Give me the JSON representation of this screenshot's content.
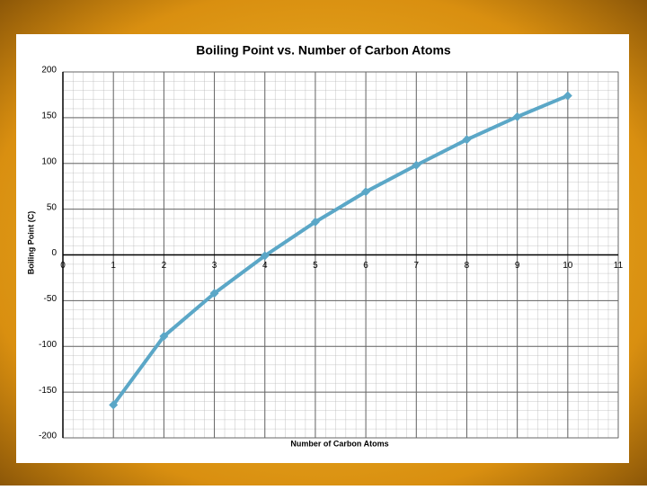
{
  "chart_data": {
    "type": "line",
    "title": "Boiling Point vs. Number of Carbon Atoms",
    "x_label": "Number of Carbon Atoms",
    "y_label": "Boiling Point (C)",
    "x": [
      1,
      2,
      3,
      4,
      5,
      6,
      7,
      8,
      9,
      10
    ],
    "series": [
      {
        "name": "Boiling Point",
        "color": "#5ba7c7",
        "values": [
          -164,
          -89,
          -42,
          -1,
          36,
          69,
          98,
          126,
          151,
          174
        ]
      }
    ],
    "xlim": [
      0,
      11
    ],
    "xticks": [
      0,
      1,
      2,
      3,
      4,
      5,
      6,
      7,
      8,
      9,
      10,
      11
    ],
    "ylim": [
      -200,
      200
    ],
    "yticks": [
      -200,
      -150,
      -100,
      -50,
      0,
      50,
      100,
      150,
      200
    ],
    "grid": true
  }
}
